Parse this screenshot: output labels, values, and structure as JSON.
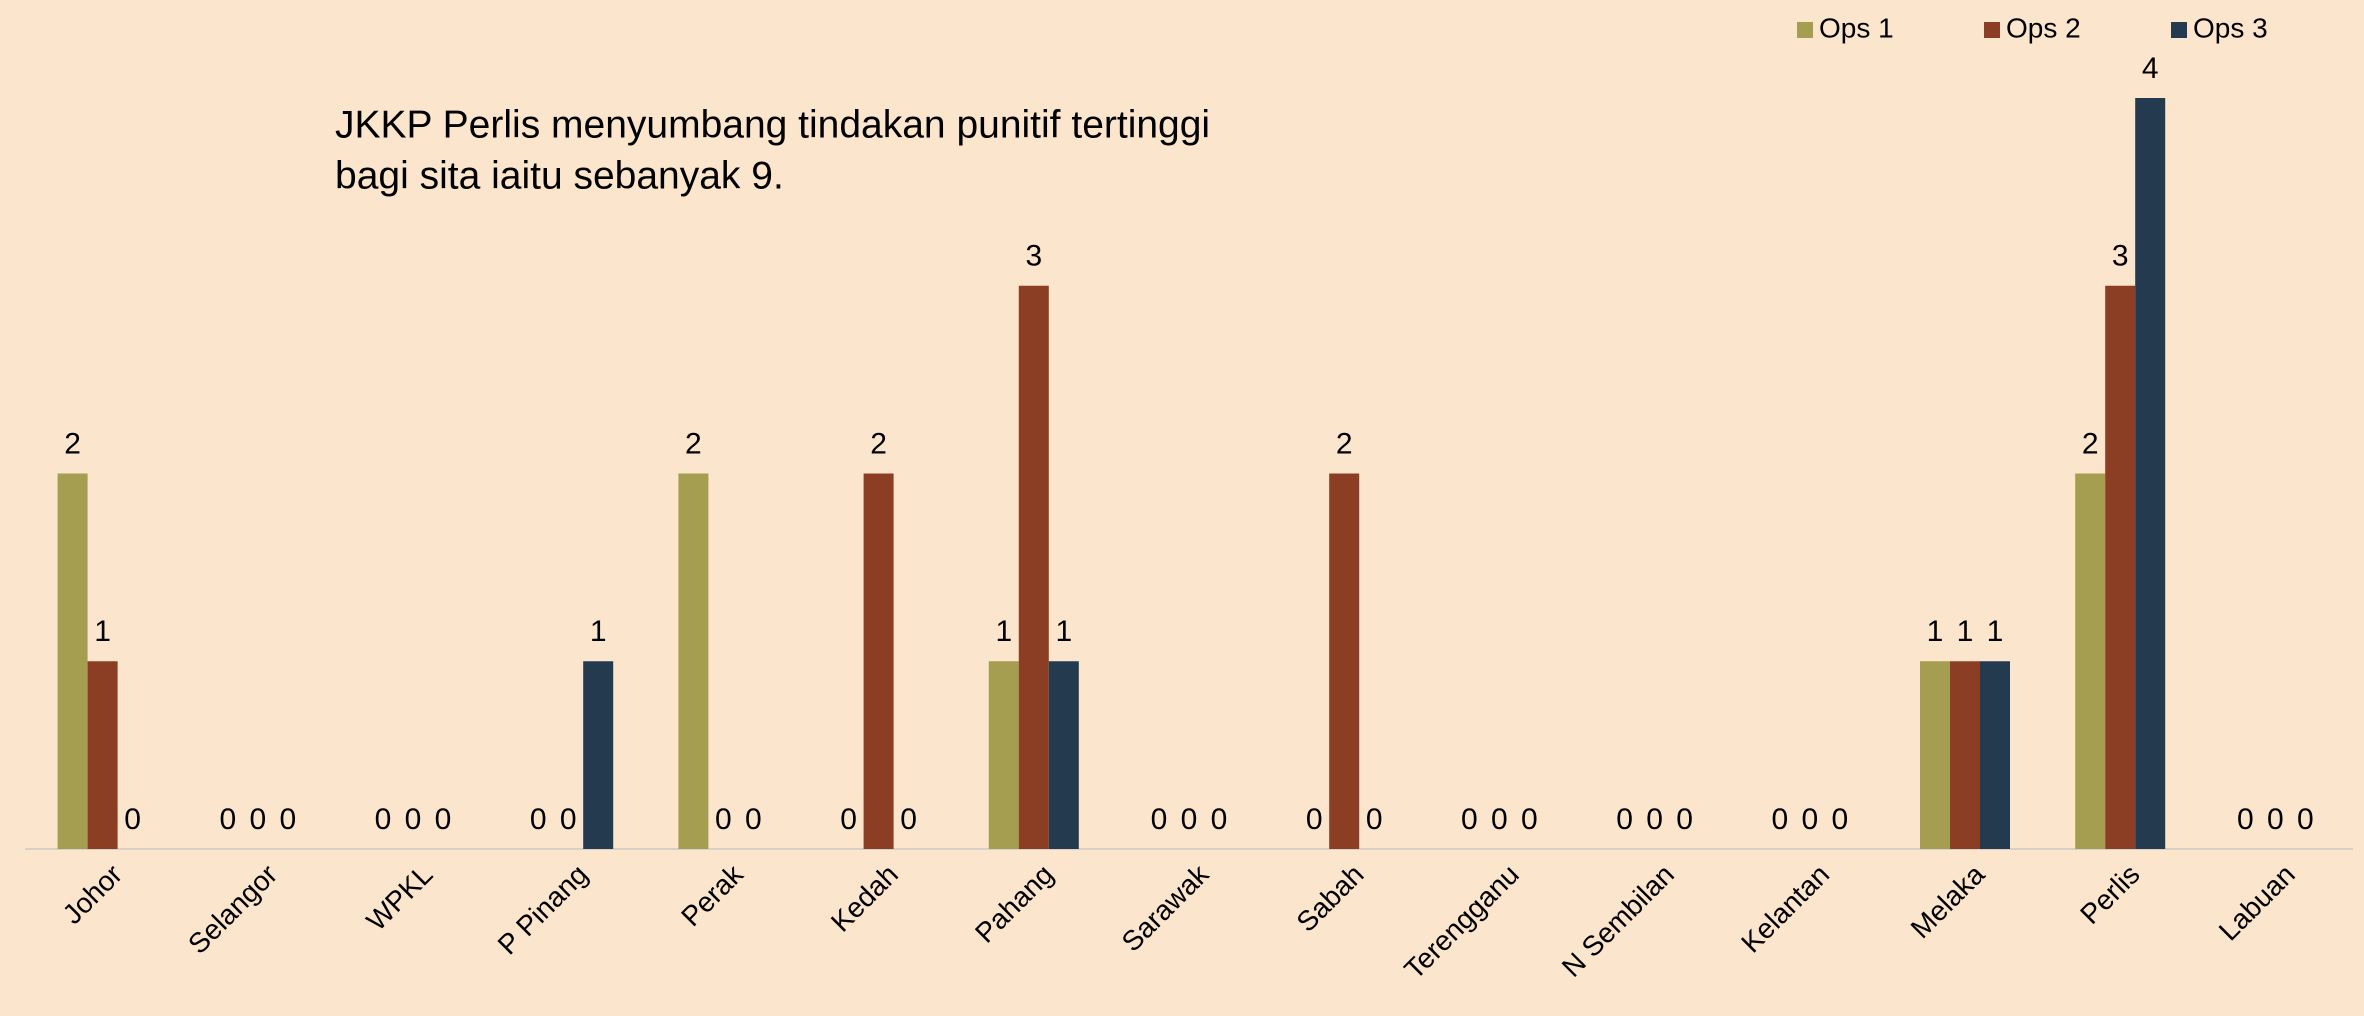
{
  "chart_data": {
    "type": "bar",
    "annotation": [
      "JKKP Perlis menyumbang tindakan punitif tertinggi",
      "bagi sita iaitu sebanyak 9."
    ],
    "categories": [
      "Johor",
      "Selangor",
      "WPKL",
      "P Pinang",
      "Perak",
      "Kedah",
      "Pahang",
      "Sarawak",
      "Sabah",
      "Terengganu",
      "N Sembilan",
      "Kelantan",
      "Melaka",
      "Perlis",
      "Labuan"
    ],
    "series": [
      {
        "name": "Ops 1",
        "color": "#a59d4f",
        "values": [
          2,
          0,
          0,
          0,
          2,
          0,
          1,
          0,
          0,
          0,
          0,
          0,
          1,
          2,
          0
        ]
      },
      {
        "name": "Ops 2",
        "color": "#8b3e23",
        "values": [
          1,
          0,
          0,
          0,
          0,
          2,
          3,
          0,
          2,
          0,
          0,
          0,
          1,
          3,
          0
        ]
      },
      {
        "name": "Ops 3",
        "color": "#243a4f",
        "values": [
          0,
          0,
          0,
          1,
          0,
          0,
          1,
          0,
          0,
          0,
          0,
          0,
          1,
          4,
          0
        ]
      }
    ],
    "ylim": [
      0,
      4
    ],
    "legend": "top-right"
  }
}
